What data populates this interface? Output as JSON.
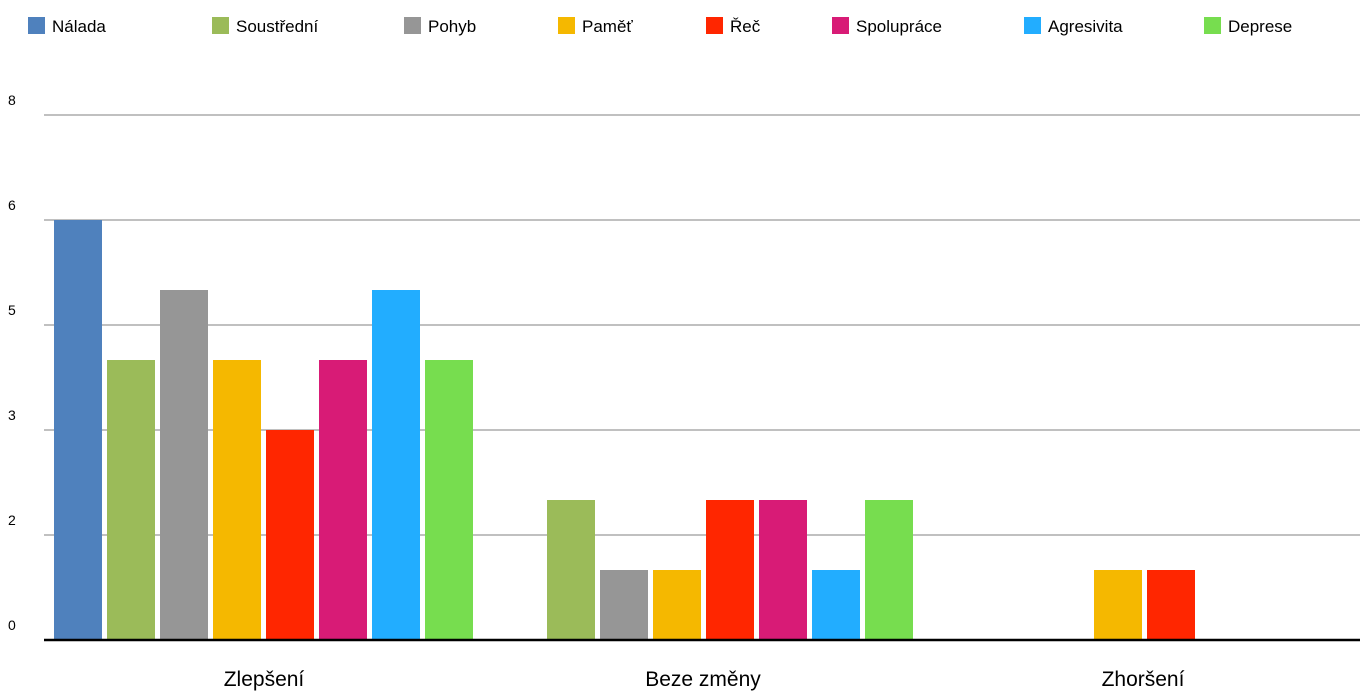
{
  "chart_data": {
    "type": "bar",
    "title": "",
    "xlabel": "",
    "ylabel": "",
    "categories": [
      "Zlepšení",
      "Beze změny",
      "Zhoršení"
    ],
    "yticks": [
      "0",
      "2",
      "3",
      "5",
      "6",
      "8"
    ],
    "ylim": [
      0,
      7.5
    ],
    "grid": true,
    "legend_position": "top",
    "series": [
      {
        "name": "Nálada",
        "color": "#4f81bd",
        "values": [
          6,
          0,
          0
        ]
      },
      {
        "name": "Soustřední",
        "color": "#9bbb59",
        "values": [
          4,
          2,
          0
        ]
      },
      {
        "name": "Pohyb",
        "color": "#969696",
        "values": [
          5,
          1,
          0
        ]
      },
      {
        "name": "Paměť",
        "color": "#f5b800",
        "values": [
          4,
          1,
          1
        ]
      },
      {
        "name": "Řeč",
        "color": "#ff2600",
        "values": [
          3,
          2,
          1
        ]
      },
      {
        "name": "Spolupráce",
        "color": "#d81b76",
        "values": [
          4,
          2,
          0
        ]
      },
      {
        "name": "Agresivita",
        "color": "#22adff",
        "values": [
          5,
          1,
          0
        ]
      },
      {
        "name": "Deprese",
        "color": "#77dd4f",
        "values": [
          4,
          2,
          0
        ]
      }
    ]
  }
}
